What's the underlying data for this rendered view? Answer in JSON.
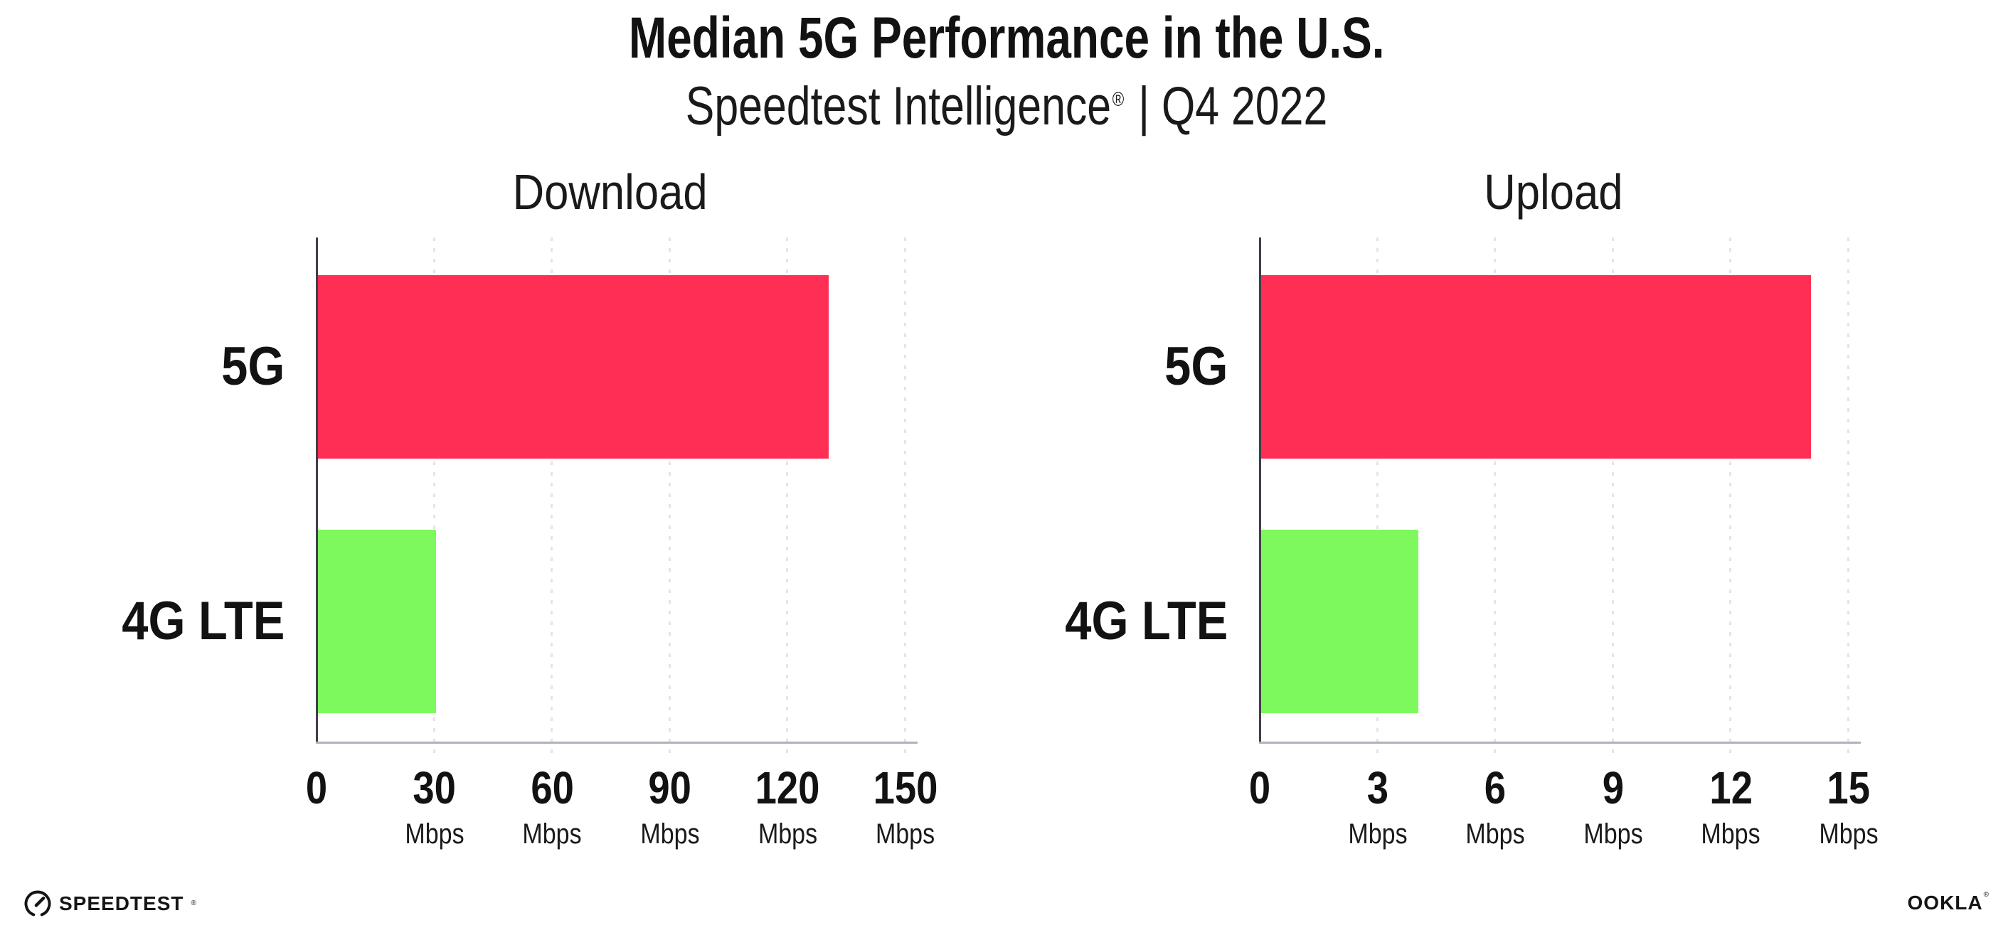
{
  "header": {
    "title": "Median 5G Performance in the U.S.",
    "subtitle_brand": "Speedtest Intelligence",
    "subtitle_reg": "®",
    "subtitle_rest": " | Q4 2022"
  },
  "footer": {
    "speedtest_label": "SPEEDTEST",
    "speedtest_mark": "®",
    "ookla_label": "OOKLA",
    "ookla_mark": "®"
  },
  "colors": {
    "bar_5g": "#ff2e55",
    "bar_4g_lte": "#7df95e",
    "gridline": "#e3e3ef",
    "y_axis": "#3f3f49",
    "x_axis": "#b1b1bb",
    "text": "#121212"
  },
  "chart_data": [
    {
      "type": "bar",
      "orientation": "horizontal",
      "title": "Download",
      "categories": [
        "5G",
        "4G LTE"
      ],
      "values": [
        130,
        30
      ],
      "unit": "Mbps",
      "xlabel": "",
      "ylabel": "",
      "xlim": [
        0,
        150
      ],
      "xticks": [
        0,
        30,
        60,
        90,
        120,
        150
      ],
      "bar_colors": [
        "#ff2e55",
        "#7df95e"
      ],
      "grid": "vertical-dotted",
      "legend": "none"
    },
    {
      "type": "bar",
      "orientation": "horizontal",
      "title": "Upload",
      "categories": [
        "5G",
        "4G LTE"
      ],
      "values": [
        14,
        4
      ],
      "unit": "Mbps",
      "xlabel": "",
      "ylabel": "",
      "xlim": [
        0,
        15
      ],
      "xticks": [
        0,
        3,
        6,
        9,
        12,
        15
      ],
      "bar_colors": [
        "#ff2e55",
        "#7df95e"
      ],
      "grid": "vertical-dotted",
      "legend": "none"
    }
  ]
}
